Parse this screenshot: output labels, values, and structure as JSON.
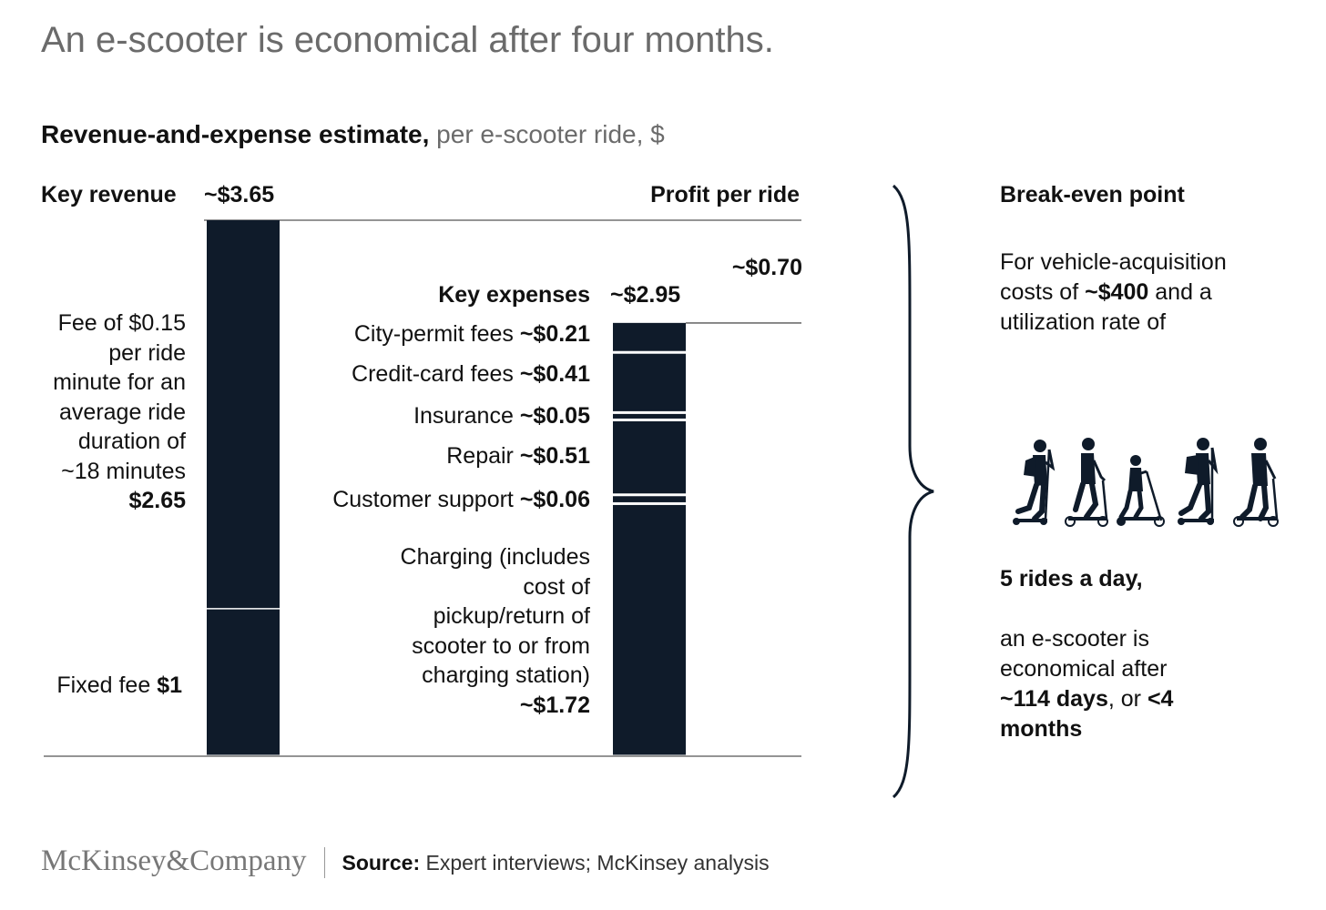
{
  "title": "An e-scooter is economical after four months.",
  "subtitle": {
    "bold": "Revenue-and-expense estimate,",
    "normal": "per e-scooter ride, $"
  },
  "chart_data": {
    "type": "bar",
    "stacked": true,
    "ylim": [
      0,
      3.65
    ],
    "revenue": {
      "header": "Key revenue",
      "total_label": "~$3.65",
      "total": 3.65,
      "segments": [
        {
          "name": "fixed",
          "value": 1.0,
          "text": "Fixed fee ",
          "value_label": "$1"
        },
        {
          "name": "per-minute",
          "value": 2.65,
          "text": "Fee of $0.15 per ride minute for an average ride duration of ~18 minutes",
          "value_label": "$2.65"
        }
      ]
    },
    "expenses": {
      "header": "Key expenses",
      "total_label": "~$2.95",
      "total": 2.95,
      "segments": [
        {
          "name": "city-permit",
          "text": "City-permit fees ",
          "value_label": "~$0.21",
          "value": 0.21
        },
        {
          "name": "credit-card",
          "text": "Credit-card fees ",
          "value_label": "~$0.41",
          "value": 0.41
        },
        {
          "name": "insurance",
          "text": "Insurance ",
          "value_label": "~$0.05",
          "value": 0.05
        },
        {
          "name": "repair",
          "text": "Repair ",
          "value_label": "~$0.51",
          "value": 0.51
        },
        {
          "name": "customer-support",
          "text": "Customer support ",
          "value_label": "~$0.06",
          "value": 0.06
        },
        {
          "name": "charging",
          "text": "Charging (includes cost of pickup/return of scooter to or from charging station) ",
          "value_label": "~$1.72",
          "value": 1.72
        }
      ]
    },
    "profit": {
      "header": "Profit per ride",
      "label": "~$0.70",
      "value": 0.7
    },
    "colors": {
      "bar": "#0f1b2a",
      "line": "#555555"
    }
  },
  "breakeven": {
    "header": "Break-even point",
    "intro_pre": "For vehicle-acquisition costs of ",
    "intro_bold": "~$400",
    "intro_post": " and a utilization rate of",
    "rides": "5 rides a day,",
    "result_pre": "an e-scooter is economical after ",
    "result_days": "~114 days",
    "result_mid": ", or ",
    "result_months": "<4 months",
    "icon": "scooter-riders-icon"
  },
  "footer": {
    "logo": "McKinsey&Company",
    "source_label": "Source:",
    "source_text": " Expert interviews; McKinsey analysis"
  }
}
